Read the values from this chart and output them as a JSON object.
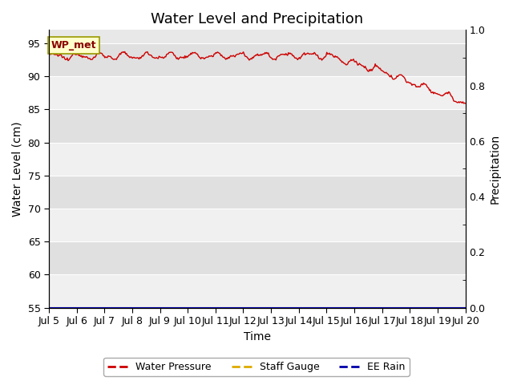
{
  "title": "Water Level and Precipitation",
  "xlabel": "Time",
  "ylabel_left": "Water Level (cm)",
  "ylabel_right": "Precipitation",
  "ylim_left": [
    55,
    97
  ],
  "ylim_right": [
    0.0,
    1.0
  ],
  "yticks_left": [
    55,
    60,
    65,
    70,
    75,
    80,
    85,
    90,
    95
  ],
  "yticks_right": [
    0.0,
    0.2,
    0.4,
    0.6,
    0.8,
    1.0
  ],
  "yticks_right_minor": [
    0.1,
    0.3,
    0.5,
    0.7,
    0.9
  ],
  "xtick_labels": [
    "Jul 5",
    "Jul 6",
    "Jul 7",
    "Jul 8",
    "Jul 9",
    "Jul 10",
    "Jul 11",
    "Jul 12",
    "Jul 13",
    "Jul 14",
    "Jul 15",
    "Jul 16",
    "Jul 17",
    "Jul 18",
    "Jul 19",
    "Jul 20"
  ],
  "water_pressure_color": "#cc0000",
  "staff_gauge_color": "#ddaa00",
  "ee_rain_color": "#0000aa",
  "background_color": "#e8e8e8",
  "band_color_light": "#f0f0f0",
  "band_color_dark": "#e0e0e0",
  "annotation_text": "WP_met",
  "annotation_box_color": "#ffffcc",
  "annotation_border_color": "#999900",
  "annotation_text_color": "#880000",
  "legend_labels": [
    "Water Pressure",
    "Staff Gauge",
    "EE Rain"
  ],
  "title_fontsize": 13,
  "axis_label_fontsize": 10,
  "tick_fontsize": 9
}
